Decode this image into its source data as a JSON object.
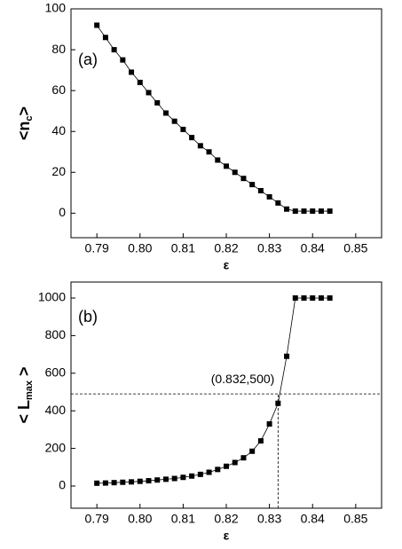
{
  "chart_data": [
    {
      "type": "line",
      "panel_label": "(a)",
      "xlabel": "ε",
      "ylabel": {
        "main": "<n",
        "sub": "c",
        "end": ">"
      },
      "x": [
        0.79,
        0.792,
        0.794,
        0.796,
        0.798,
        0.8,
        0.802,
        0.804,
        0.806,
        0.808,
        0.81,
        0.812,
        0.814,
        0.816,
        0.818,
        0.82,
        0.822,
        0.824,
        0.826,
        0.828,
        0.83,
        0.832,
        0.834,
        0.836,
        0.838,
        0.84,
        0.842,
        0.844
      ],
      "values": [
        92,
        86,
        80,
        75,
        69,
        64,
        59,
        54,
        49,
        45,
        41,
        37,
        33,
        30,
        26,
        23,
        20,
        17,
        14,
        11,
        8,
        5,
        2,
        1,
        1,
        1,
        1,
        1
      ],
      "color": "#000000",
      "xlim": [
        0.784,
        0.856
      ],
      "xticks": [
        {
          "value": 0.79,
          "label": "0.79"
        },
        {
          "value": 0.8,
          "label": "0.80"
        },
        {
          "value": 0.81,
          "label": "0.81"
        },
        {
          "value": 0.82,
          "label": "0.82"
        },
        {
          "value": 0.83,
          "label": "0.83"
        },
        {
          "value": 0.84,
          "label": "0.84"
        },
        {
          "value": 0.85,
          "label": "0.85"
        }
      ],
      "ylim": [
        -12,
        100
      ],
      "yticks": [
        0,
        20,
        40,
        60,
        80,
        100
      ]
    },
    {
      "type": "line",
      "panel_label": "(b)",
      "xlabel": "ε",
      "ylabel": {
        "main": "< L",
        "sub": "max",
        "end": " >"
      },
      "annotation": "(0.832,500)",
      "vline": 0.832,
      "hline": 490,
      "x": [
        0.79,
        0.792,
        0.794,
        0.796,
        0.798,
        0.8,
        0.802,
        0.804,
        0.806,
        0.808,
        0.81,
        0.812,
        0.814,
        0.816,
        0.818,
        0.82,
        0.822,
        0.824,
        0.826,
        0.828,
        0.83,
        0.832,
        0.834,
        0.836,
        0.838,
        0.84,
        0.842,
        0.844
      ],
      "values": [
        15,
        16,
        18,
        20,
        22,
        25,
        28,
        32,
        36,
        40,
        46,
        53,
        62,
        73,
        88,
        105,
        125,
        150,
        185,
        240,
        330,
        440,
        690,
        1000,
        1000,
        1000,
        1000,
        1000
      ],
      "color": "#000000",
      "xlim": [
        0.784,
        0.856
      ],
      "xticks": [
        {
          "value": 0.79,
          "label": "0.79"
        },
        {
          "value": 0.8,
          "label": "0.80"
        },
        {
          "value": 0.81,
          "label": "0.81"
        },
        {
          "value": 0.82,
          "label": "0.82"
        },
        {
          "value": 0.83,
          "label": "0.83"
        },
        {
          "value": 0.84,
          "label": "0.84"
        },
        {
          "value": 0.85,
          "label": "0.85"
        }
      ],
      "ylim": [
        -118,
        1085
      ],
      "yticks": [
        0,
        200,
        400,
        600,
        800,
        1000
      ]
    }
  ]
}
